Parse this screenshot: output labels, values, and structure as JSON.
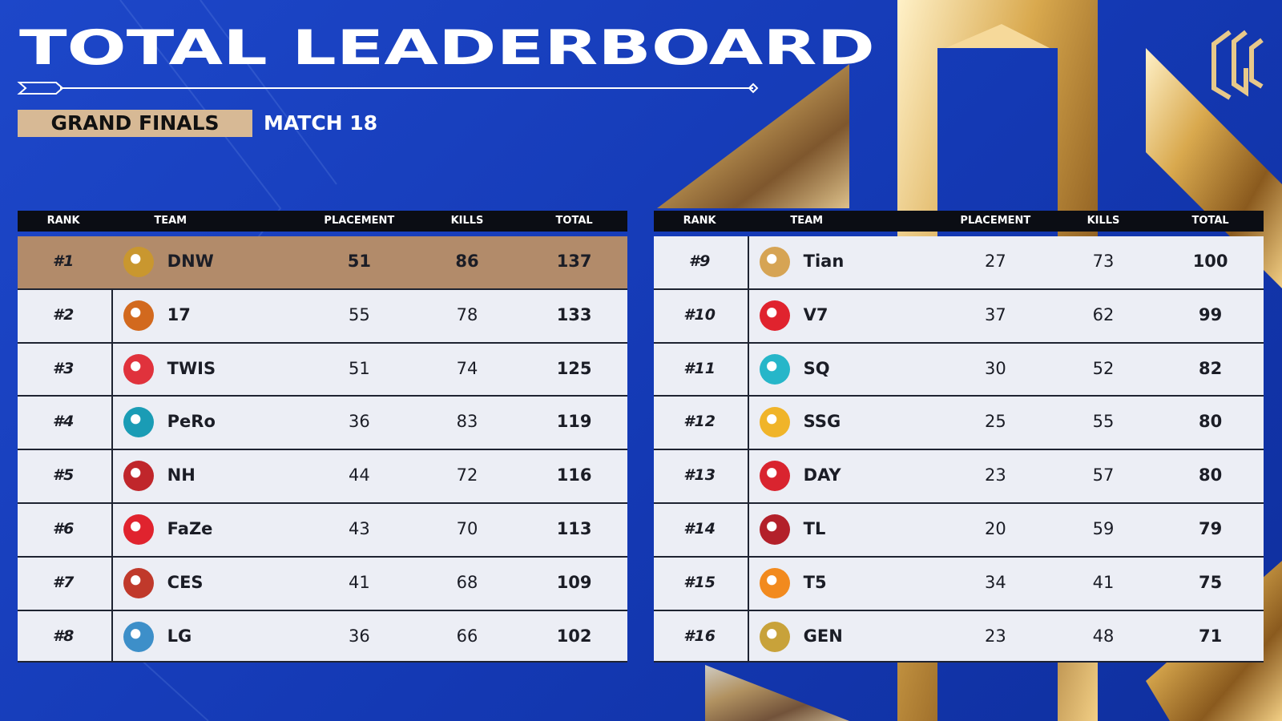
{
  "header": {
    "title": "TOTAL LEADERBOARD",
    "badge": "GRAND FINALS",
    "match": "MATCH 18"
  },
  "tables": [
    {
      "columns": [
        "RANK",
        "TEAM",
        "PLACEMENT",
        "KILLS",
        "TOTAL"
      ],
      "rows": [
        [
          "#1",
          "DNW",
          51,
          86,
          137
        ],
        [
          "#2",
          "17",
          55,
          78,
          133
        ],
        [
          "#3",
          "TWIS",
          51,
          74,
          125
        ],
        [
          "#4",
          "PeRo",
          36,
          83,
          119
        ],
        [
          "#5",
          "NH",
          44,
          72,
          116
        ],
        [
          "#6",
          "FaZe",
          43,
          70,
          113
        ],
        [
          "#7",
          "CES",
          41,
          68,
          109
        ],
        [
          "#8",
          "LG",
          36,
          66,
          102
        ]
      ]
    },
    {
      "columns": [
        "RANK",
        "TEAM",
        "PLACEMENT",
        "KILLS",
        "TOTAL"
      ],
      "rows": [
        [
          "#9",
          "Tian",
          27,
          73,
          100
        ],
        [
          "#10",
          "V7",
          37,
          62,
          99
        ],
        [
          "#11",
          "SQ",
          30,
          52,
          82
        ],
        [
          "#12",
          "SSG",
          25,
          55,
          80
        ],
        [
          "#13",
          "DAY",
          23,
          57,
          80
        ],
        [
          "#14",
          "TL",
          20,
          59,
          79
        ],
        [
          "#15",
          "T5",
          34,
          41,
          75
        ],
        [
          "#16",
          "GEN",
          23,
          48,
          71
        ]
      ]
    }
  ]
}
